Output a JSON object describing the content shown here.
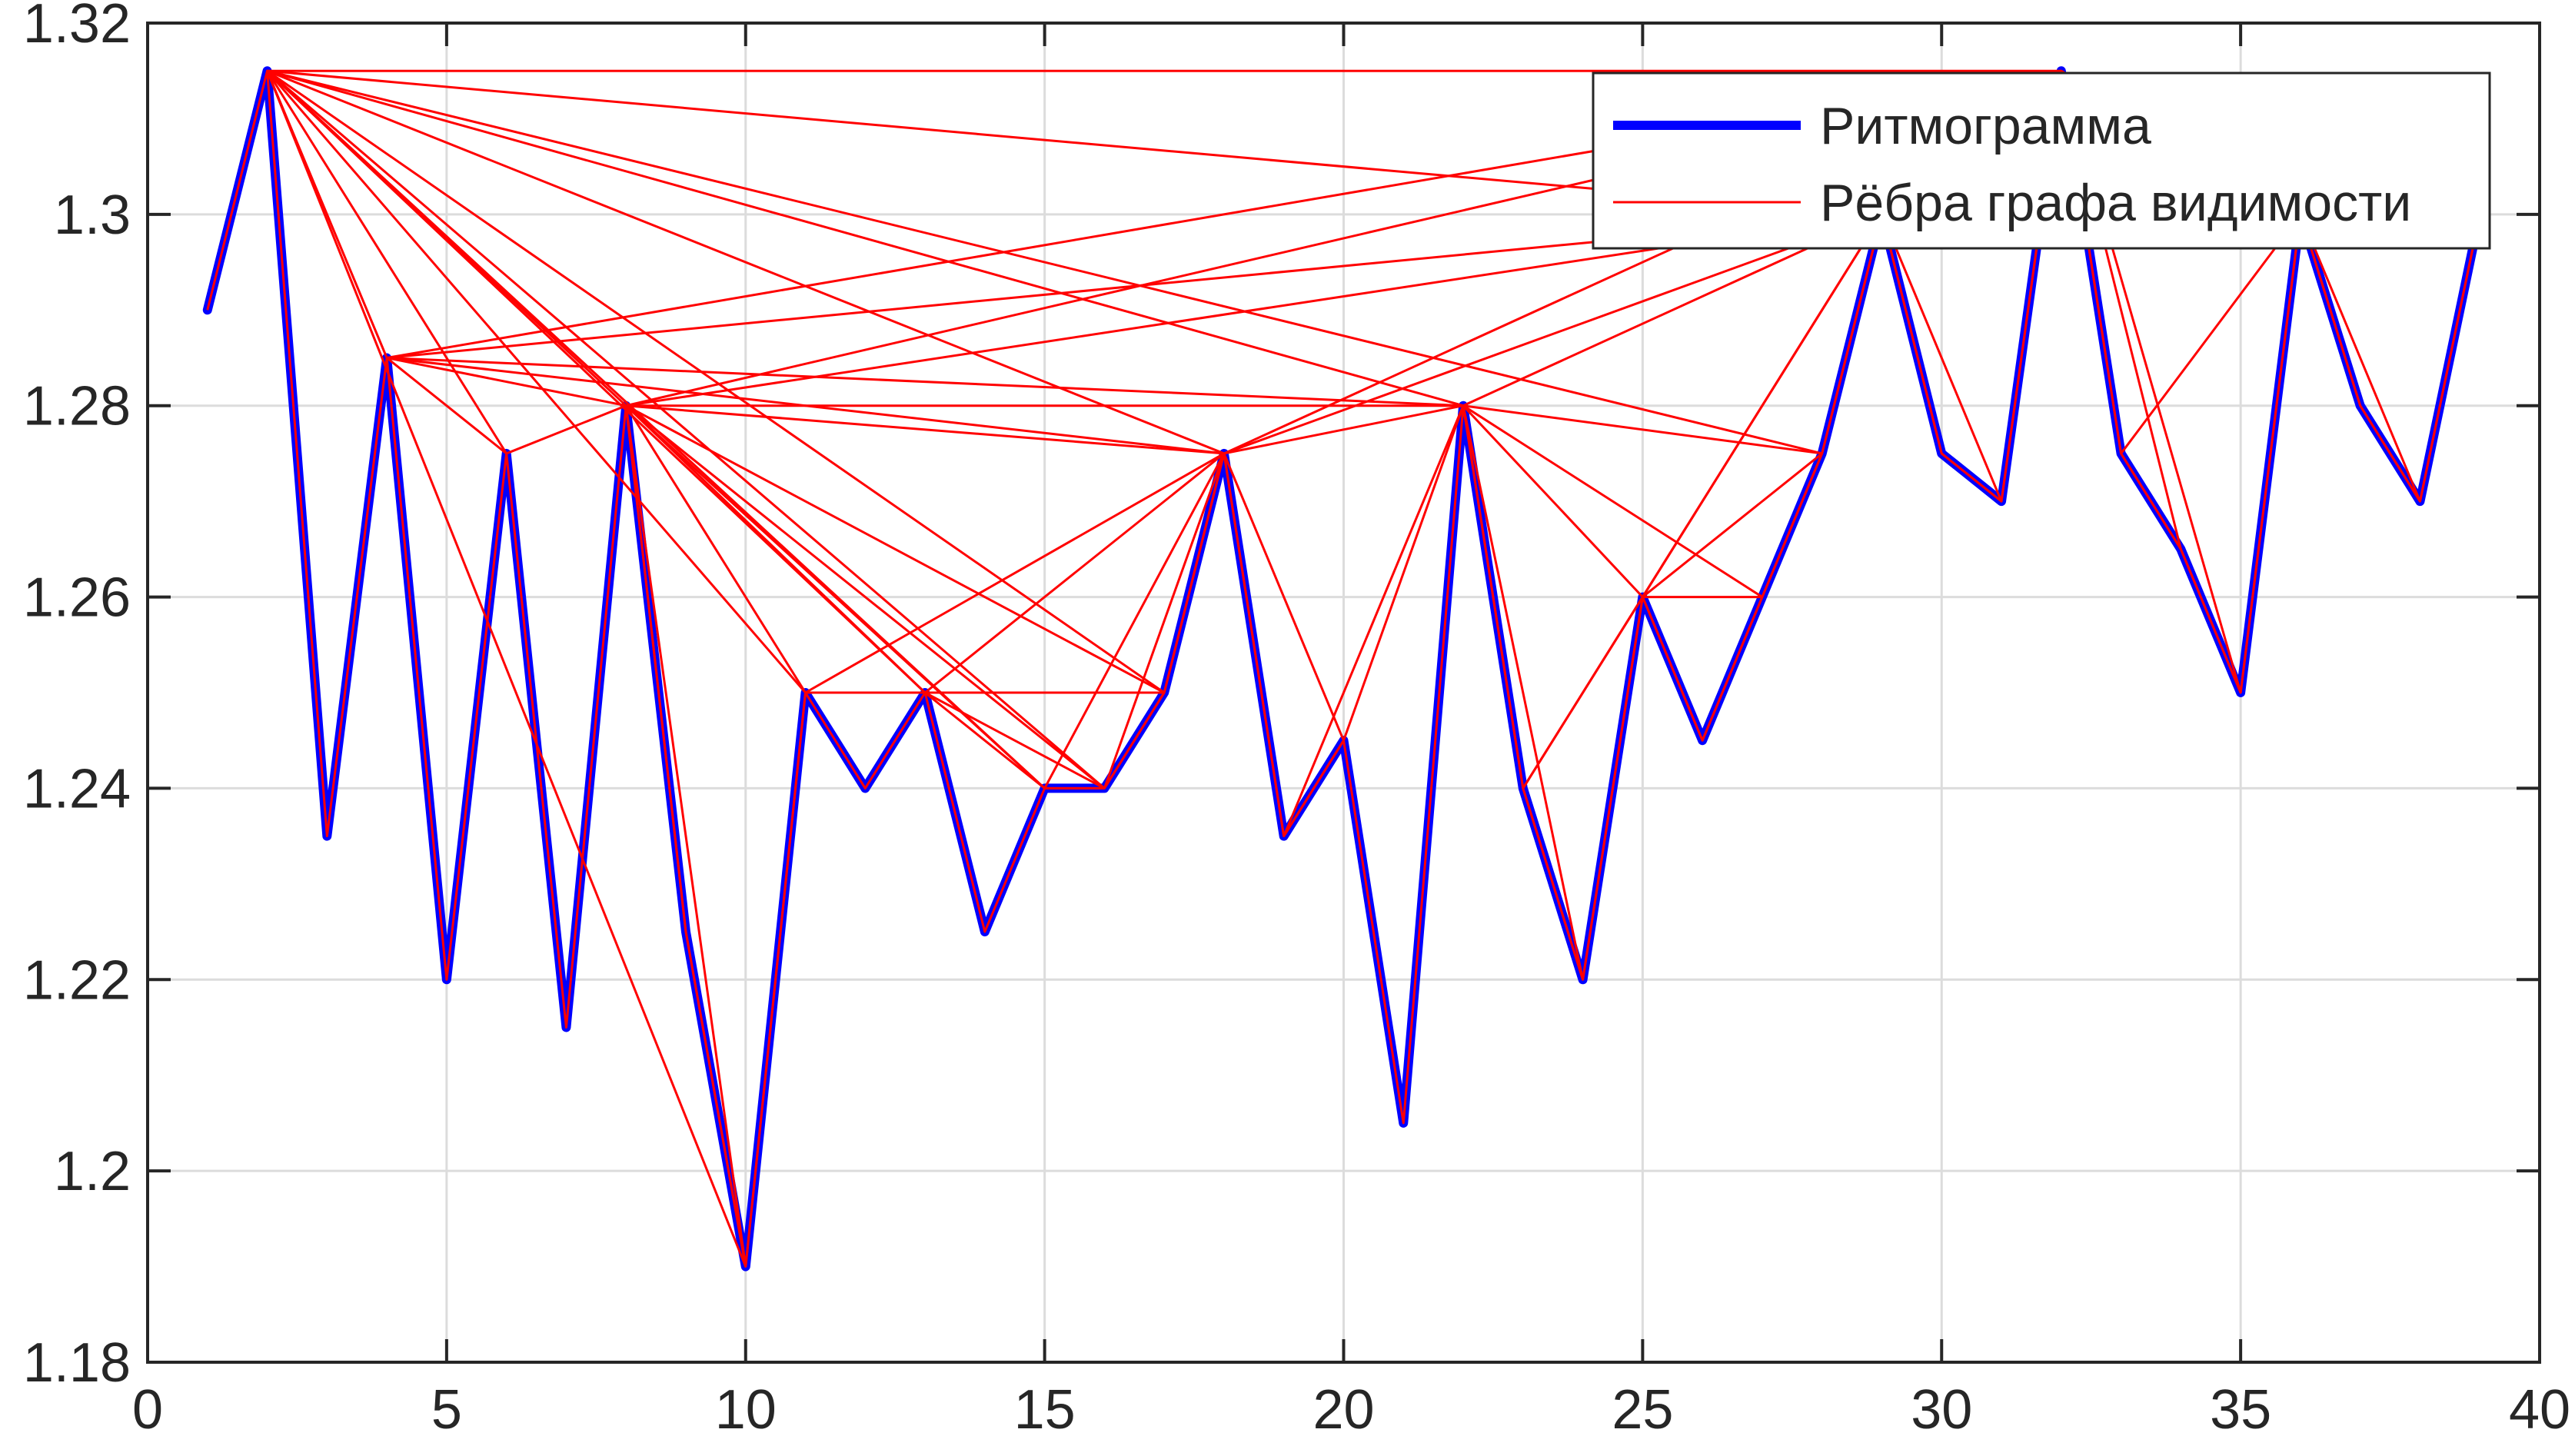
{
  "chart_data": {
    "type": "line",
    "title": "",
    "xlabel": "",
    "ylabel": "",
    "xlim": [
      0,
      40
    ],
    "ylim": [
      1.18,
      1.32
    ],
    "x_ticks": [
      "0",
      "5",
      "10",
      "15",
      "20",
      "25",
      "30",
      "35",
      "40"
    ],
    "y_ticks": [
      "1.18",
      "1.2",
      "1.22",
      "1.24",
      "1.26",
      "1.28",
      "1.3",
      "1.32"
    ],
    "grid": true,
    "legend_position": "top-right",
    "series": [
      {
        "name": "Ритмограмма",
        "color": "#0000ff",
        "x": [
          1,
          2,
          3,
          4,
          5,
          6,
          7,
          8,
          9,
          10,
          11,
          12,
          13,
          14,
          15,
          16,
          17,
          18,
          19,
          20,
          21,
          22,
          23,
          24,
          25,
          26,
          27,
          28,
          29,
          30,
          31,
          32,
          33,
          34,
          35,
          36,
          37,
          38,
          39
        ],
        "y": [
          1.29,
          1.315,
          1.235,
          1.285,
          1.22,
          1.275,
          1.215,
          1.28,
          1.225,
          1.19,
          1.25,
          1.24,
          1.25,
          1.225,
          1.24,
          1.24,
          1.25,
          1.275,
          1.235,
          1.245,
          1.205,
          1.28,
          1.24,
          1.22,
          1.26,
          1.245,
          1.26,
          1.275,
          1.3,
          1.275,
          1.27,
          1.315,
          1.275,
          1.265,
          1.25,
          1.3,
          1.28,
          1.27,
          1.3
        ]
      }
    ],
    "edges": {
      "name": "Рёбра графа видимости",
      "color": "#ff0000",
      "pairs": [
        [
          2,
          4
        ],
        [
          2,
          6
        ],
        [
          2,
          8
        ],
        [
          2,
          10
        ],
        [
          2,
          11
        ],
        [
          2,
          13
        ],
        [
          2,
          15
        ],
        [
          2,
          16
        ],
        [
          2,
          17
        ],
        [
          2,
          18
        ],
        [
          2,
          22
        ],
        [
          2,
          28
        ],
        [
          2,
          29
        ],
        [
          2,
          32
        ],
        [
          4,
          6
        ],
        [
          4,
          8
        ],
        [
          4,
          18
        ],
        [
          4,
          22
        ],
        [
          4,
          29
        ],
        [
          4,
          32
        ],
        [
          6,
          8
        ],
        [
          8,
          9
        ],
        [
          8,
          10
        ],
        [
          8,
          11
        ],
        [
          8,
          13
        ],
        [
          8,
          15
        ],
        [
          8,
          16
        ],
        [
          8,
          17
        ],
        [
          8,
          18
        ],
        [
          8,
          22
        ],
        [
          8,
          29
        ],
        [
          8,
          32
        ],
        [
          9,
          10
        ],
        [
          10,
          11
        ],
        [
          11,
          13
        ],
        [
          11,
          17
        ],
        [
          11,
          18
        ],
        [
          13,
          15
        ],
        [
          13,
          16
        ],
        [
          13,
          17
        ],
        [
          13,
          18
        ],
        [
          15,
          16
        ],
        [
          15,
          18
        ],
        [
          16,
          17
        ],
        [
          16,
          18
        ],
        [
          17,
          18
        ],
        [
          18,
          19
        ],
        [
          18,
          20
        ],
        [
          18,
          22
        ],
        [
          18,
          29
        ],
        [
          18,
          32
        ],
        [
          19,
          20
        ],
        [
          19,
          22
        ],
        [
          20,
          22
        ],
        [
          22,
          23
        ],
        [
          22,
          24
        ],
        [
          22,
          25
        ],
        [
          22,
          27
        ],
        [
          22,
          28
        ],
        [
          22,
          29
        ],
        [
          23,
          24
        ],
        [
          23,
          25
        ],
        [
          23,
          29
        ],
        [
          24,
          25
        ],
        [
          25,
          26
        ],
        [
          25,
          27
        ],
        [
          25,
          28
        ],
        [
          25,
          29
        ],
        [
          26,
          27
        ],
        [
          27,
          28
        ],
        [
          28,
          29
        ],
        [
          29,
          30
        ],
        [
          29,
          31
        ],
        [
          29,
          32
        ],
        [
          30,
          31
        ],
        [
          31,
          32
        ],
        [
          32,
          33
        ],
        [
          32,
          34
        ],
        [
          32,
          35
        ],
        [
          32,
          36
        ],
        [
          33,
          34
        ],
        [
          33,
          36
        ],
        [
          34,
          35
        ],
        [
          35,
          36
        ],
        [
          36,
          37
        ],
        [
          36,
          38
        ],
        [
          36,
          39
        ],
        [
          37,
          38
        ],
        [
          38,
          39
        ]
      ]
    }
  },
  "legend": {
    "items": [
      {
        "label": "Ритмограмма",
        "color": "#0000ff"
      },
      {
        "label": "Рёбра графа видимости",
        "color": "#ff0000"
      }
    ]
  }
}
